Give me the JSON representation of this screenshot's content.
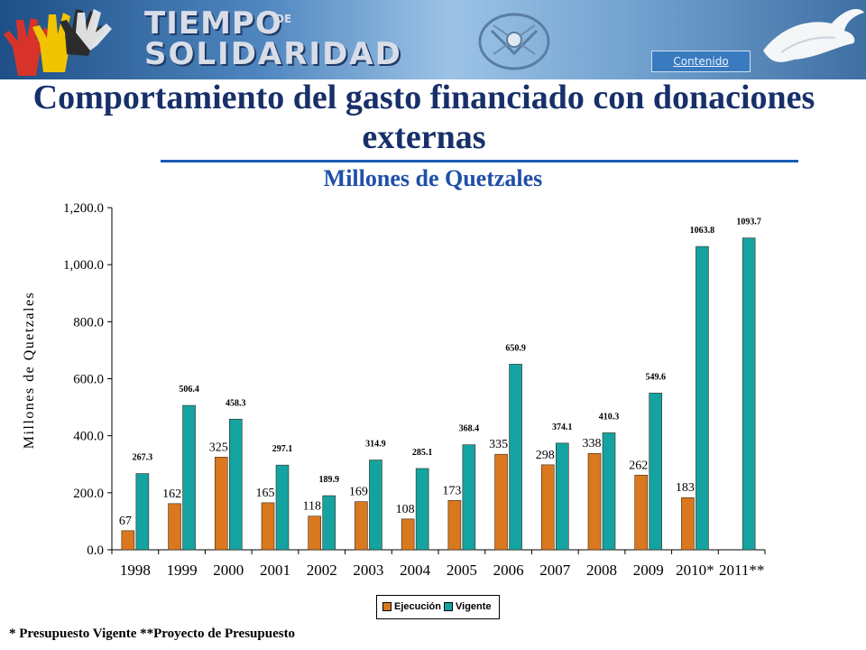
{
  "header": {
    "brand_line1": "TIEMPO",
    "brand_de": "DE",
    "brand_line2": "SOLIDARIDAD",
    "contenido_link": "Contenido"
  },
  "title": "Comportamiento del gasto financiado con donaciones externas",
  "subtitle": "Millones de Quetzales",
  "footnote": "* Presupuesto Vigente  **Proyecto de Presupuesto",
  "colors": {
    "ejecucion": "#d9781f",
    "vigente": "#14a3a0",
    "title": "#17306a",
    "subtitle": "#1f4fa8"
  },
  "chart_data": {
    "type": "bar",
    "ylabel": "Millones de Quetzales",
    "ylim": [
      0,
      1200
    ],
    "yticks": [
      "0.0",
      "200.0",
      "400.0",
      "600.0",
      "800.0",
      "1,000.0",
      "1,200.0"
    ],
    "categories": [
      "1998",
      "1999",
      "2000",
      "2001",
      "2002",
      "2003",
      "2004",
      "2005",
      "2006",
      "2007",
      "2008",
      "2009",
      "2010*",
      "2011**"
    ],
    "series": [
      {
        "name": "Ejecución",
        "values": [
          67,
          162,
          325,
          165,
          118,
          169,
          108,
          173,
          335,
          298,
          338,
          262,
          183,
          null
        ],
        "labels": [
          "67",
          "162",
          "325",
          "165",
          "118",
          "169",
          "108",
          "173",
          "335",
          "298",
          "338",
          "262",
          "183",
          ""
        ]
      },
      {
        "name": "Vigente",
        "values": [
          267.3,
          506.4,
          458.3,
          297.1,
          189.9,
          314.9,
          285.1,
          368.4,
          650.9,
          374.1,
          410.3,
          549.6,
          1063.8,
          1093.7
        ],
        "labels": [
          "267.3",
          "506.4",
          "458.3",
          "297.1",
          "189.9",
          "314.9",
          "285.1",
          "368.4",
          "650.9",
          "374.1",
          "410.3",
          "549.6",
          "1063.8",
          "1093.7"
        ]
      }
    ],
    "legend_position": "bottom",
    "grid": false
  }
}
